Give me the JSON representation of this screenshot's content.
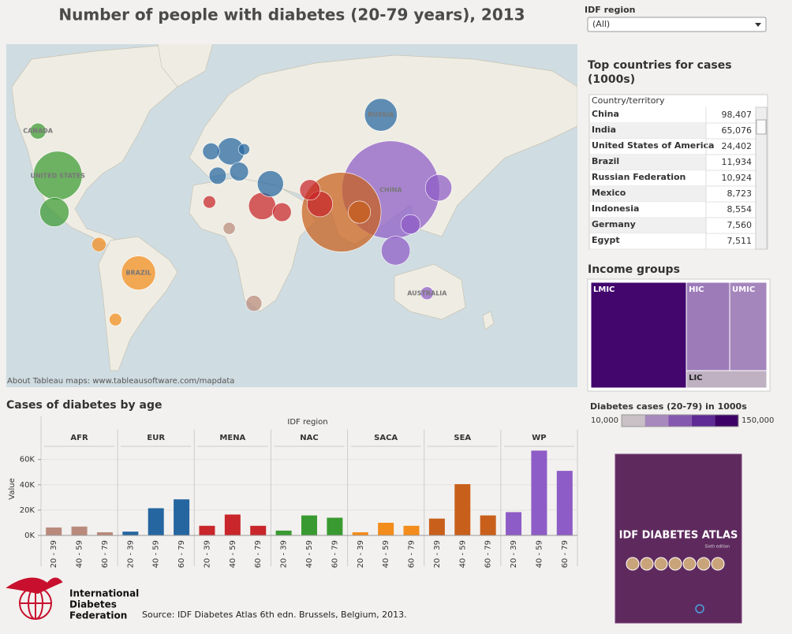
{
  "header": {
    "title": "Number of people with diabetes (20-79 years), 2013"
  },
  "filter": {
    "label": "IDF region",
    "selected": "(All)"
  },
  "table": {
    "title": "Top countries for cases (1000s)",
    "column": "Country/territory",
    "rows": [
      [
        "China",
        "98,407"
      ],
      [
        "India",
        "65,076"
      ],
      [
        "United States of America",
        "24,402"
      ],
      [
        "Brazil",
        "11,934"
      ],
      [
        "Russian Federation",
        "10,924"
      ],
      [
        "Mexico",
        "8,723"
      ],
      [
        "Indonesia",
        "8,554"
      ],
      [
        "Germany",
        "7,560"
      ],
      [
        "Egypt",
        "7,511"
      ]
    ]
  },
  "chart_data": [
    {
      "type": "bubble-map",
      "attribution": "About Tableau maps: www.tableausoftware.com/mapdata",
      "points": [
        {
          "name": "CHINA",
          "region": "WP",
          "lon": 104,
          "lat": 25,
          "value": 98407
        },
        {
          "name": null,
          "region": "SEA",
          "lon": 74,
          "lat": 14,
          "value": 65076
        },
        {
          "name": "UNITED STATES",
          "region": "NAC",
          "lon": -98,
          "lat": 32,
          "value": 24402
        },
        {
          "name": "BRAZIL",
          "region": "SACA",
          "lon": -49,
          "lat": -16,
          "value": 11934
        },
        {
          "name": "RUSSIA",
          "region": "EUR",
          "lon": 98,
          "lat": 62,
          "value": 10924
        },
        {
          "name": null,
          "region": "NAC",
          "lon": -100,
          "lat": 14,
          "value": 8723
        },
        {
          "name": null,
          "region": "WP",
          "lon": 107,
          "lat": -5,
          "value": 8554
        },
        {
          "name": null,
          "region": "EUR",
          "lon": 7,
          "lat": 44,
          "value": 7560
        },
        {
          "name": null,
          "region": "MENA",
          "lon": 26,
          "lat": 17,
          "value": 7511
        },
        {
          "name": null,
          "region": "WP",
          "lon": 133,
          "lat": 26,
          "value": 7200
        },
        {
          "name": null,
          "region": "EUR",
          "lon": 31,
          "lat": 28,
          "value": 7000
        },
        {
          "name": null,
          "region": "MENA",
          "lon": 61,
          "lat": 18,
          "value": 6700
        },
        {
          "name": null,
          "region": "SEA",
          "lon": 85,
          "lat": 14,
          "value": 5100
        },
        {
          "name": null,
          "region": "MENA",
          "lon": 55,
          "lat": 25,
          "value": 4300
        },
        {
          "name": null,
          "region": "WP",
          "lon": 116,
          "lat": 8,
          "value": 3900
        },
        {
          "name": null,
          "region": "MENA",
          "lon": 38,
          "lat": 14,
          "value": 3600
        },
        {
          "name": null,
          "region": "EUR",
          "lon": 12,
          "lat": 34,
          "value": 3600
        },
        {
          "name": null,
          "region": "EUR",
          "lon": -1,
          "lat": 32,
          "value": 3000
        },
        {
          "name": null,
          "region": "EUR",
          "lon": -5,
          "lat": 44,
          "value": 2900
        },
        {
          "name": "CANADA",
          "region": "NAC",
          "lon": -110,
          "lat": 54,
          "value": 2600
        },
        {
          "name": null,
          "region": "AFR",
          "lon": 21,
          "lat": -31,
          "value": 2600
        },
        {
          "name": null,
          "region": "SACA",
          "lon": -73,
          "lat": -2,
          "value": 2100
        },
        {
          "name": "AUSTRALIA",
          "region": "WP",
          "lon": 126,
          "lat": -26,
          "value": 1700
        },
        {
          "name": null,
          "region": "MENA",
          "lon": -6,
          "lat": 19,
          "value": 1600
        },
        {
          "name": null,
          "region": "SACA",
          "lon": -63,
          "lat": -39,
          "value": 1600
        },
        {
          "name": null,
          "region": "AFR",
          "lon": 6,
          "lat": 6,
          "value": 1500
        },
        {
          "name": null,
          "region": "EUR",
          "lon": 15,
          "lat": 45,
          "value": 1300
        }
      ]
    },
    {
      "type": "faceted-bar",
      "title": "Cases of diabetes by age",
      "facet_label": "IDF region",
      "y_label": "Value",
      "categories": [
        "20 - 39",
        "40 - 59",
        "60 - 79"
      ],
      "ylim": [
        0,
        71000
      ],
      "yticks": [
        {
          "value": 0,
          "label": "0K"
        },
        {
          "value": 20000,
          "label": "20K"
        },
        {
          "value": 40000,
          "label": "40K"
        },
        {
          "value": 60000,
          "label": "60K"
        }
      ],
      "grid": true,
      "series": [
        {
          "name": "AFR",
          "color": "#b98a7c",
          "values": [
            6300,
            7000,
            2500
          ]
        },
        {
          "name": "EUR",
          "color": "#2566a0",
          "values": [
            3000,
            21500,
            28500
          ]
        },
        {
          "name": "MENA",
          "color": "#c8262a",
          "values": [
            7600,
            16500,
            7600
          ]
        },
        {
          "name": "NAC",
          "color": "#3a9a32",
          "values": [
            3800,
            15800,
            14000
          ]
        },
        {
          "name": "SACA",
          "color": "#f28c1c",
          "values": [
            2500,
            10000,
            7600
          ]
        },
        {
          "name": "SEA",
          "color": "#c8601c",
          "values": [
            13300,
            40500,
            15800
          ]
        },
        {
          "name": "WP",
          "color": "#8e5cc6",
          "values": [
            18400,
            67000,
            51000
          ]
        }
      ]
    },
    {
      "type": "treemap",
      "title": "Income groups",
      "categories": [
        "LMIC",
        "HIC",
        "UMIC",
        "LIC"
      ],
      "values": [
        145000,
        55000,
        47000,
        20000
      ],
      "colorscale": {
        "title": "Diabetes cases (20-79) in 1000s",
        "min": {
          "value": 10000,
          "label": "10,000"
        },
        "max": {
          "value": 150000,
          "label": "150,000"
        },
        "colors": [
          "#c8c0c4",
          "#a789bd",
          "#8558b0",
          "#5e2a94",
          "#3d0066"
        ]
      }
    }
  ],
  "source": "Source: IDF Diabetes Atlas 6th edn. Brussels, Belgium, 2013.",
  "logo": [
    "International",
    "Diabetes",
    "Federation"
  ],
  "book": {
    "title": "IDF DIABETES ATLAS",
    "edition": "Sixth edition"
  }
}
